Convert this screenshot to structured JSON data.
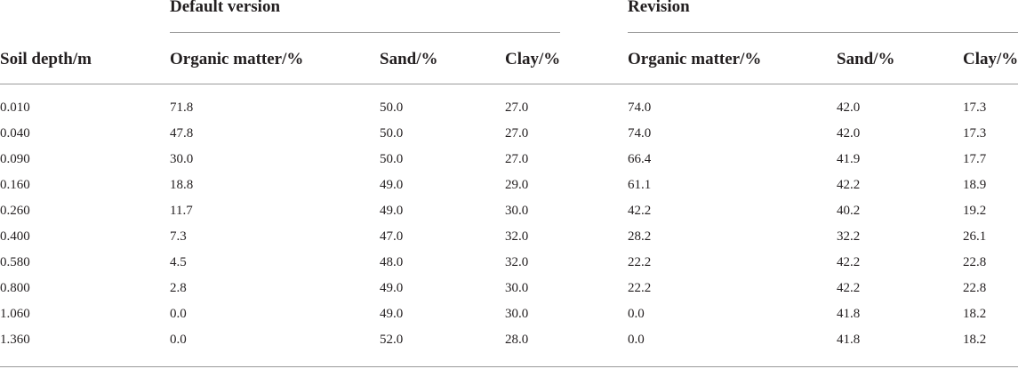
{
  "table": {
    "group_headers": [
      "Default version",
      "Revision"
    ],
    "columns": [
      "Soil depth/m",
      "Organic matter/%",
      "Sand/%",
      "Clay/%",
      "Organic matter/%",
      "Sand/%",
      "Clay/%"
    ],
    "rows": [
      [
        "0.010",
        "71.8",
        "50.0",
        "27.0",
        "74.0",
        "42.0",
        "17.3"
      ],
      [
        "0.040",
        "47.8",
        "50.0",
        "27.0",
        "74.0",
        "42.0",
        "17.3"
      ],
      [
        "0.090",
        "30.0",
        "50.0",
        "27.0",
        "66.4",
        "41.9",
        "17.7"
      ],
      [
        "0.160",
        "18.8",
        "49.0",
        "29.0",
        "61.1",
        "42.2",
        "18.9"
      ],
      [
        "0.260",
        "11.7",
        "49.0",
        "30.0",
        "42.2",
        "40.2",
        "19.2"
      ],
      [
        "0.400",
        "7.3",
        "47.0",
        "32.0",
        "28.2",
        "32.2",
        "26.1"
      ],
      [
        "0.580",
        "4.5",
        "48.0",
        "32.0",
        "22.2",
        "42.2",
        "22.8"
      ],
      [
        "0.800",
        "2.8",
        "49.0",
        "30.0",
        "22.2",
        "42.2",
        "22.8"
      ],
      [
        "1.060",
        "0.0",
        "49.0",
        "30.0",
        "0.0",
        "41.8",
        "18.2"
      ],
      [
        "1.360",
        "0.0",
        "52.0",
        "28.0",
        "0.0",
        "41.8",
        "18.2"
      ]
    ]
  }
}
